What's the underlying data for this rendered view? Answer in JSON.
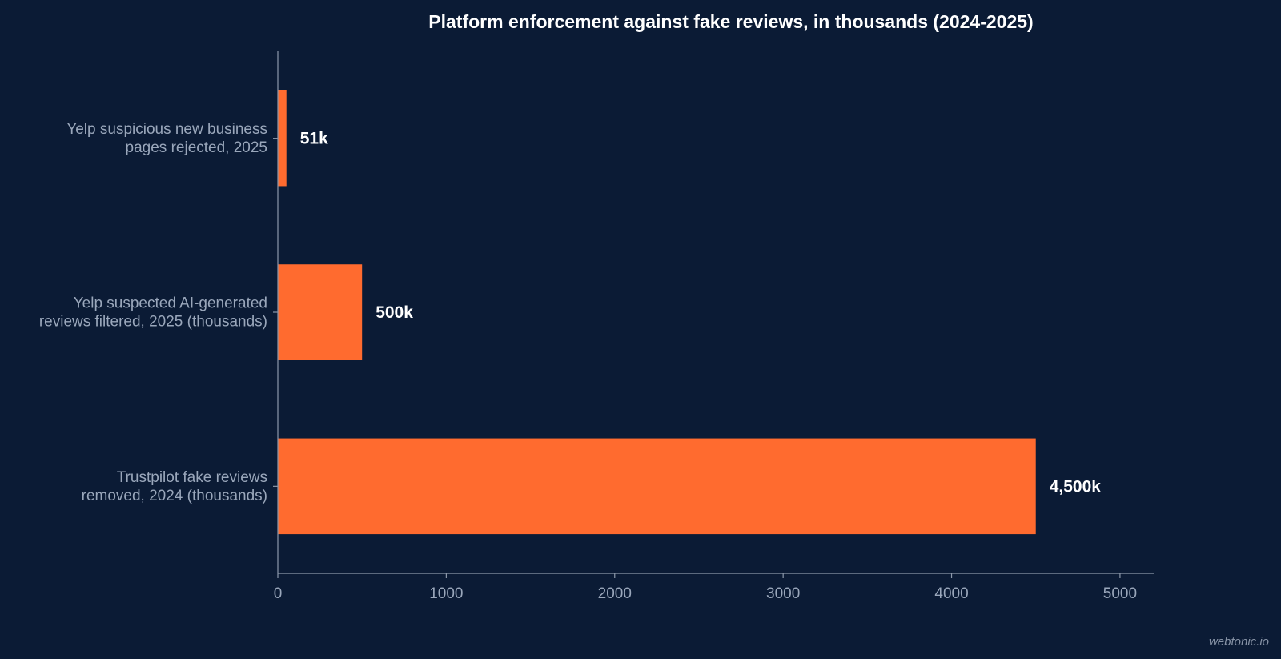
{
  "chart_data": {
    "type": "bar",
    "orientation": "horizontal",
    "title": "Platform enforcement against fake reviews, in thousands (2024-2025)",
    "categories": [
      [
        "Yelp suspicious new business",
        "pages rejected, 2025"
      ],
      [
        "Yelp suspected AI-generated",
        "reviews filtered, 2025 (thousands)"
      ],
      [
        "Trustpilot fake reviews",
        "removed, 2024 (thousands)"
      ]
    ],
    "values": [
      51,
      500,
      4500
    ],
    "value_labels": [
      "51k",
      "500k",
      "4,500k"
    ],
    "xlim": [
      0,
      5200
    ],
    "x_ticks": [
      0,
      1000,
      2000,
      3000,
      4000,
      5000
    ],
    "x_tick_labels": [
      "0",
      "1000",
      "2000",
      "3000",
      "4000",
      "5000"
    ],
    "grid": false,
    "bar_color": "#ff6b2f",
    "background_color": "#0b1b35"
  },
  "watermark": "webtonic.io"
}
